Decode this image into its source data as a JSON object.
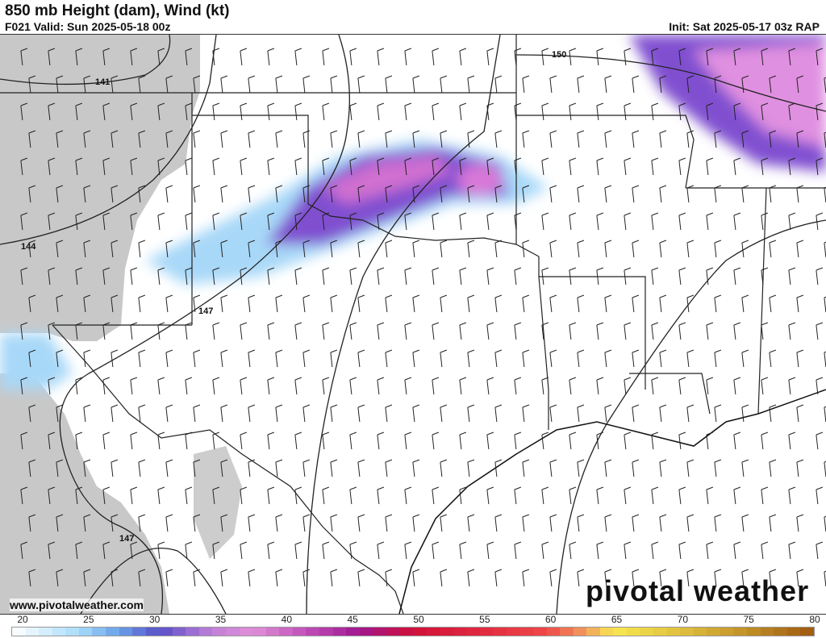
{
  "header": {
    "title": "850 mb Height (dam), Wind (kt)",
    "valid": "F021 Valid: Sun 2025-05-18 00z",
    "init": "Init: Sat 2025-05-17 03z RAP"
  },
  "map": {
    "contour_labels": [
      "141",
      "144",
      "147",
      "147",
      "150"
    ],
    "shading_colors": {
      "light_blue": "#a8d8f8",
      "blue": "#6aa8f0",
      "purple": "#8050d0",
      "magenta": "#d070d0",
      "pink": "#e890e0"
    },
    "terrain_mask_color": "#c8c8c8"
  },
  "footer": {
    "website": "www.pivotalweather.com",
    "logo": "pivotal weather"
  },
  "colorbar": {
    "labels": [
      "20",
      "25",
      "30",
      "35",
      "40",
      "45",
      "50",
      "55",
      "60",
      "65",
      "70",
      "75",
      "80"
    ],
    "range": [
      20,
      80
    ],
    "stops": [
      {
        "value": 20,
        "color": "#ffffff"
      },
      {
        "value": 25,
        "color": "#a8dcfa"
      },
      {
        "value": 28,
        "color": "#6aa0e8"
      },
      {
        "value": 31,
        "color": "#5a50c8"
      },
      {
        "value": 35,
        "color": "#c080d8"
      },
      {
        "value": 38,
        "color": "#e090d8"
      },
      {
        "value": 42,
        "color": "#c050b8"
      },
      {
        "value": 46,
        "color": "#a01890"
      },
      {
        "value": 50,
        "color": "#d0103a"
      },
      {
        "value": 55,
        "color": "#e02a40"
      },
      {
        "value": 60,
        "color": "#f04848"
      },
      {
        "value": 63,
        "color": "#f0a060"
      },
      {
        "value": 65,
        "color": "#f8e850"
      },
      {
        "value": 70,
        "color": "#e0c040"
      },
      {
        "value": 75,
        "color": "#c09028"
      },
      {
        "value": 80,
        "color": "#a05810"
      }
    ]
  }
}
